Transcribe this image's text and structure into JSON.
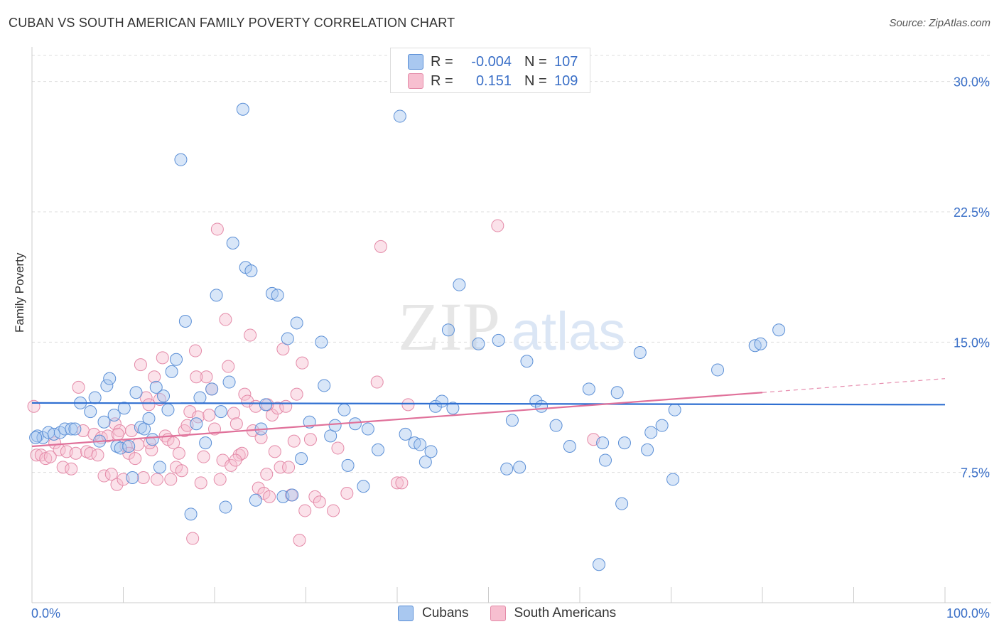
{
  "header": {
    "title": "CUBAN VS SOUTH AMERICAN FAMILY POVERTY CORRELATION CHART",
    "source": "Source: ZipAtlas.com"
  },
  "legend": {
    "rows": [
      {
        "r_label": "R =",
        "r_value": "-0.004",
        "n_label": "N =",
        "n_value": "107",
        "color": "#a9c8f0",
        "border": "#5b8fd6"
      },
      {
        "r_label": "R =",
        "r_value": "0.151",
        "n_label": "N =",
        "n_value": "109",
        "color": "#f7bfd0",
        "border": "#e48aa8"
      }
    ]
  },
  "bottom_legend": {
    "items": [
      {
        "label": "Cubans",
        "color": "#a9c8f0",
        "border": "#5b8fd6"
      },
      {
        "label": "South Americans",
        "color": "#f7bfd0",
        "border": "#e48aa8"
      }
    ]
  },
  "watermark": {
    "zip": "ZIP",
    "atlas": "atlas"
  },
  "chart_data": {
    "type": "scatter",
    "title": "CUBAN VS SOUTH AMERICAN FAMILY POVERTY CORRELATION CHART",
    "xlabel": "",
    "ylabel": "Family Poverty",
    "xlim": [
      0,
      100
    ],
    "ylim": [
      0,
      31.5
    ],
    "x_tick_labels": [
      "0.0%",
      "100.0%"
    ],
    "y_ticks": [
      7.5,
      15.0,
      22.5,
      30.0
    ],
    "y_tick_labels": [
      "7.5%",
      "15.0%",
      "22.5%",
      "30.0%"
    ],
    "grid": "horizontal dashed",
    "legend_position": "top-center",
    "colors": {
      "cubans": "#5b8fd6",
      "south_americans": "#e48aa8",
      "tick_text": "#3a6fc7"
    },
    "series": [
      {
        "name": "Cubans",
        "r": -0.004,
        "n": 107,
        "trend": {
          "x": [
            0,
            100
          ],
          "y": [
            11.5,
            11.4
          ]
        },
        "points": [
          [
            0.6,
            9.6
          ],
          [
            1.2,
            9.5
          ],
          [
            1.8,
            9.8
          ],
          [
            2.4,
            9.7
          ],
          [
            3.1,
            9.8
          ],
          [
            3.6,
            10.0
          ],
          [
            4.3,
            10.0
          ],
          [
            4.7,
            10.0
          ],
          [
            5.3,
            11.5
          ],
          [
            6.4,
            11.0
          ],
          [
            6.9,
            11.8
          ],
          [
            7.4,
            9.3
          ],
          [
            7.9,
            10.4
          ],
          [
            8.2,
            12.5
          ],
          [
            8.5,
            12.9
          ],
          [
            9.0,
            10.8
          ],
          [
            9.3,
            9.0
          ],
          [
            9.7,
            8.9
          ],
          [
            10.1,
            11.2
          ],
          [
            10.6,
            9.0
          ],
          [
            11.0,
            7.2
          ],
          [
            11.4,
            12.1
          ],
          [
            11.9,
            10.1
          ],
          [
            12.3,
            10.0
          ],
          [
            12.8,
            10.6
          ],
          [
            13.2,
            9.4
          ],
          [
            13.6,
            12.4
          ],
          [
            14.0,
            7.8
          ],
          [
            14.4,
            11.9
          ],
          [
            14.9,
            11.1
          ],
          [
            15.3,
            13.3
          ],
          [
            15.8,
            14.0
          ],
          [
            16.3,
            25.5
          ],
          [
            16.8,
            16.2
          ],
          [
            17.4,
            5.1
          ],
          [
            18.0,
            10.3
          ],
          [
            18.4,
            11.8
          ],
          [
            19.0,
            9.2
          ],
          [
            19.7,
            12.3
          ],
          [
            20.2,
            17.7
          ],
          [
            20.7,
            11.0
          ],
          [
            21.2,
            5.5
          ],
          [
            21.6,
            12.7
          ],
          [
            22.0,
            20.7
          ],
          [
            23.1,
            28.4
          ],
          [
            23.4,
            19.3
          ],
          [
            24.0,
            19.1
          ],
          [
            24.5,
            5.9
          ],
          [
            25.1,
            10.0
          ],
          [
            25.6,
            11.4
          ],
          [
            26.3,
            17.8
          ],
          [
            26.9,
            17.7
          ],
          [
            27.5,
            6.1
          ],
          [
            28.0,
            15.2
          ],
          [
            28.5,
            6.2
          ],
          [
            29.0,
            16.1
          ],
          [
            29.5,
            8.3
          ],
          [
            30.4,
            10.4
          ],
          [
            31.7,
            15.0
          ],
          [
            32.0,
            12.5
          ],
          [
            32.7,
            9.6
          ],
          [
            33.2,
            10.2
          ],
          [
            34.2,
            11.1
          ],
          [
            34.6,
            7.9
          ],
          [
            35.4,
            10.3
          ],
          [
            36.3,
            6.7
          ],
          [
            36.8,
            10.0
          ],
          [
            37.9,
            8.8
          ],
          [
            40.3,
            28.0
          ],
          [
            40.9,
            9.7
          ],
          [
            41.9,
            9.2
          ],
          [
            42.5,
            9.1
          ],
          [
            43.1,
            8.1
          ],
          [
            43.7,
            8.7
          ],
          [
            44.2,
            11.3
          ],
          [
            44.9,
            11.6
          ],
          [
            45.6,
            15.7
          ],
          [
            46.1,
            11.2
          ],
          [
            46.8,
            18.3
          ],
          [
            48.9,
            14.9
          ],
          [
            51.1,
            15.1
          ],
          [
            52.0,
            7.7
          ],
          [
            52.6,
            10.5
          ],
          [
            53.4,
            7.8
          ],
          [
            54.2,
            13.9
          ],
          [
            55.2,
            11.6
          ],
          [
            55.8,
            11.3
          ],
          [
            57.4,
            10.2
          ],
          [
            58.9,
            9.0
          ],
          [
            61.0,
            12.3
          ],
          [
            62.5,
            9.2
          ],
          [
            62.8,
            8.2
          ],
          [
            64.1,
            12.1
          ],
          [
            64.6,
            5.7
          ],
          [
            64.9,
            9.2
          ],
          [
            66.6,
            14.4
          ],
          [
            67.4,
            8.8
          ],
          [
            67.8,
            9.8
          ],
          [
            69.0,
            10.2
          ],
          [
            70.2,
            7.1
          ],
          [
            70.4,
            11.1
          ],
          [
            75.1,
            13.4
          ],
          [
            79.2,
            14.8
          ],
          [
            79.8,
            14.9
          ],
          [
            81.8,
            15.7
          ],
          [
            62.1,
            2.2
          ],
          [
            0.4,
            9.5
          ]
        ]
      },
      {
        "name": "South Americans",
        "r": 0.151,
        "n": 109,
        "trend": {
          "x": [
            0,
            80
          ],
          "y": [
            9.0,
            12.1
          ]
        },
        "trend_dashed": {
          "x": [
            80,
            100
          ],
          "y": [
            12.1,
            12.9
          ]
        },
        "points": [
          [
            0.2,
            11.3
          ],
          [
            0.5,
            8.5
          ],
          [
            1.0,
            8.5
          ],
          [
            1.5,
            8.3
          ],
          [
            2.0,
            8.4
          ],
          [
            2.5,
            9.2
          ],
          [
            3.0,
            8.8
          ],
          [
            3.4,
            7.8
          ],
          [
            3.8,
            8.7
          ],
          [
            4.3,
            7.7
          ],
          [
            4.8,
            8.6
          ],
          [
            5.1,
            12.4
          ],
          [
            5.6,
            9.9
          ],
          [
            6.0,
            8.7
          ],
          [
            6.4,
            8.6
          ],
          [
            6.8,
            9.7
          ],
          [
            7.2,
            8.5
          ],
          [
            7.6,
            9.5
          ],
          [
            7.9,
            7.3
          ],
          [
            8.3,
            9.6
          ],
          [
            8.7,
            7.4
          ],
          [
            9.1,
            10.3
          ],
          [
            9.3,
            6.8
          ],
          [
            9.6,
            9.9
          ],
          [
            10.0,
            7.1
          ],
          [
            10.3,
            9.0
          ],
          [
            10.6,
            8.6
          ],
          [
            10.9,
            9.9
          ],
          [
            11.3,
            8.3
          ],
          [
            11.6,
            9.1
          ],
          [
            11.9,
            13.7
          ],
          [
            12.2,
            7.2
          ],
          [
            12.5,
            11.8
          ],
          [
            12.8,
            11.4
          ],
          [
            13.1,
            8.8
          ],
          [
            13.4,
            13.0
          ],
          [
            13.7,
            7.1
          ],
          [
            14.0,
            11.7
          ],
          [
            14.3,
            14.1
          ],
          [
            14.6,
            9.6
          ],
          [
            14.9,
            9.4
          ],
          [
            15.2,
            7.1
          ],
          [
            15.5,
            9.2
          ],
          [
            15.8,
            7.8
          ],
          [
            16.1,
            8.6
          ],
          [
            16.4,
            7.6
          ],
          [
            16.7,
            9.9
          ],
          [
            17.0,
            10.2
          ],
          [
            17.3,
            11.0
          ],
          [
            17.6,
            3.7
          ],
          [
            17.9,
            14.5
          ],
          [
            18.2,
            10.7
          ],
          [
            18.5,
            6.9
          ],
          [
            18.8,
            8.4
          ],
          [
            19.1,
            13.0
          ],
          [
            19.4,
            10.8
          ],
          [
            19.7,
            12.3
          ],
          [
            20.0,
            10.0
          ],
          [
            20.3,
            21.5
          ],
          [
            20.6,
            7.1
          ],
          [
            20.9,
            8.2
          ],
          [
            21.2,
            16.3
          ],
          [
            21.5,
            13.6
          ],
          [
            21.8,
            7.9
          ],
          [
            22.1,
            10.9
          ],
          [
            22.4,
            10.3
          ],
          [
            22.7,
            8.5
          ],
          [
            23.0,
            8.6
          ],
          [
            23.3,
            12.0
          ],
          [
            23.6,
            11.6
          ],
          [
            23.9,
            15.4
          ],
          [
            24.2,
            9.9
          ],
          [
            24.5,
            11.3
          ],
          [
            24.8,
            6.6
          ],
          [
            25.1,
            9.5
          ],
          [
            25.4,
            6.3
          ],
          [
            25.7,
            7.4
          ],
          [
            26.0,
            6.1
          ],
          [
            26.3,
            10.8
          ],
          [
            26.6,
            8.7
          ],
          [
            26.9,
            11.2
          ],
          [
            27.2,
            7.8
          ],
          [
            27.5,
            14.6
          ],
          [
            27.8,
            11.3
          ],
          [
            28.1,
            7.8
          ],
          [
            28.4,
            6.2
          ],
          [
            28.7,
            9.3
          ],
          [
            29.0,
            12.0
          ],
          [
            29.3,
            3.6
          ],
          [
            29.6,
            13.8
          ],
          [
            29.9,
            5.3
          ],
          [
            30.5,
            9.4
          ],
          [
            31.0,
            6.1
          ],
          [
            31.5,
            5.8
          ],
          [
            33.0,
            5.3
          ],
          [
            33.5,
            8.9
          ],
          [
            34.5,
            6.3
          ],
          [
            37.8,
            12.7
          ],
          [
            38.2,
            20.5
          ],
          [
            40.0,
            6.9
          ],
          [
            40.5,
            6.9
          ],
          [
            51.0,
            21.7
          ],
          [
            61.5,
            9.4
          ],
          [
            41.2,
            11.4
          ],
          [
            22.3,
            8.2
          ],
          [
            25.8,
            11.4
          ],
          [
            18.0,
            13.0
          ],
          [
            12.9,
            9.2
          ],
          [
            9.4,
            9.7
          ]
        ]
      }
    ]
  }
}
